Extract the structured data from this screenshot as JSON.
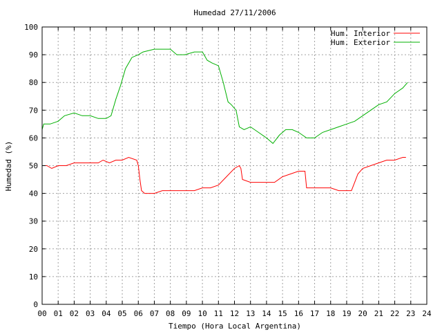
{
  "chart_data": {
    "type": "line",
    "title": "Humedad 27/11/2006",
    "xlabel": "Tiempo (Hora Local Argentina)",
    "ylabel": "Humedad (%)",
    "xlim": [
      0,
      24
    ],
    "ylim": [
      0,
      100
    ],
    "x_ticks": [
      "00",
      "01",
      "02",
      "03",
      "04",
      "05",
      "06",
      "07",
      "08",
      "09",
      "10",
      "11",
      "12",
      "13",
      "14",
      "15",
      "16",
      "17",
      "18",
      "19",
      "20",
      "21",
      "22",
      "23",
      "24"
    ],
    "y_ticks": [
      "0",
      "10",
      "20",
      "30",
      "40",
      "50",
      "60",
      "70",
      "80",
      "90",
      "100"
    ],
    "grid": true,
    "legend_position": "top-right",
    "series": [
      {
        "name": "Hum. Interior",
        "color": "#ff0000",
        "x": [
          0,
          0.3,
          0.6,
          1.0,
          1.5,
          2.0,
          2.5,
          3.0,
          3.5,
          3.8,
          4.2,
          4.6,
          5.0,
          5.4,
          5.9,
          6.0,
          6.1,
          6.2,
          6.4,
          7.0,
          7.5,
          8.0,
          8.5,
          9.0,
          9.5,
          10.0,
          10.5,
          11.0,
          11.5,
          12.0,
          12.3,
          12.4,
          12.5,
          13.0,
          13.5,
          14.0,
          14.5,
          15.0,
          15.5,
          16.0,
          16.4,
          16.5,
          17.0,
          17.5,
          18.0,
          18.5,
          19.0,
          19.3,
          19.5,
          19.7,
          20.0,
          20.5,
          21.0,
          21.5,
          22.0,
          22.5,
          22.7
        ],
        "y": [
          50,
          50,
          49,
          50,
          50,
          51,
          51,
          51,
          51,
          52,
          51,
          52,
          52,
          53,
          52,
          50,
          45,
          41,
          40,
          40,
          41,
          41,
          41,
          41,
          41,
          42,
          42,
          43,
          46,
          49,
          50,
          49,
          45,
          44,
          44,
          44,
          44,
          46,
          47,
          48,
          48,
          42,
          42,
          42,
          42,
          41,
          41,
          41,
          44,
          47,
          49,
          50,
          51,
          52,
          52,
          53,
          53
        ]
      },
      {
        "name": "Hum. Exterior",
        "color": "#00b000",
        "x": [
          0,
          0.1,
          0.5,
          1.0,
          1.4,
          2.0,
          2.5,
          3.0,
          3.5,
          4.0,
          4.3,
          4.6,
          4.9,
          5.2,
          5.6,
          6.0,
          6.3,
          7.0,
          7.5,
          8.0,
          8.4,
          8.9,
          9.5,
          10.0,
          10.3,
          10.6,
          11.0,
          11.3,
          11.6,
          11.8,
          12.1,
          12.3,
          12.6,
          13.0,
          13.5,
          14.0,
          14.4,
          14.8,
          15.2,
          15.6,
          16.0,
          16.5,
          17.0,
          17.5,
          18.0,
          18.5,
          19.0,
          19.5,
          20.0,
          20.5,
          21.0,
          21.5,
          22.0,
          22.5,
          22.8
        ],
        "y": [
          63,
          65,
          65,
          66,
          68,
          69,
          68,
          68,
          67,
          67,
          68,
          74,
          79,
          85,
          89,
          90,
          91,
          92,
          92,
          92,
          90,
          90,
          91,
          91,
          88,
          87,
          86,
          80,
          73,
          72,
          70,
          64,
          63,
          64,
          62,
          60,
          58,
          61,
          63,
          63,
          62,
          60,
          60,
          62,
          63,
          64,
          65,
          66,
          68,
          70,
          72,
          73,
          76,
          78,
          80
        ]
      }
    ]
  }
}
